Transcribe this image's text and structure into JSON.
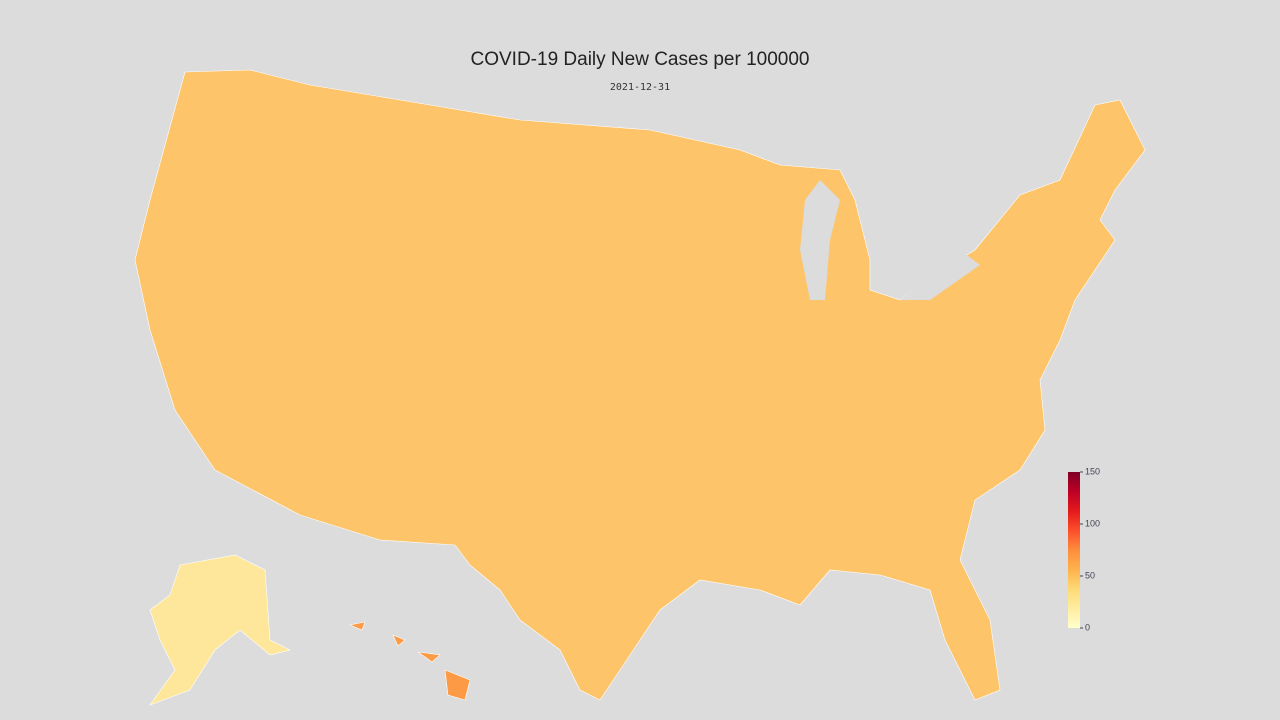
{
  "chart_data": {
    "type": "choropleth",
    "title": "COVID-19 Daily New Cases per 100000",
    "subtitle": "2021-12-31",
    "colorbar": {
      "range": [
        0,
        150
      ],
      "ticks": [
        0,
        50,
        100,
        150
      ],
      "colorscale": [
        "#ffffcc",
        "#ffeda0",
        "#fed976",
        "#feb24c",
        "#fd8d3c",
        "#fc4e2a",
        "#e31a1c",
        "#bd0026",
        "#800026"
      ]
    }
  }
}
